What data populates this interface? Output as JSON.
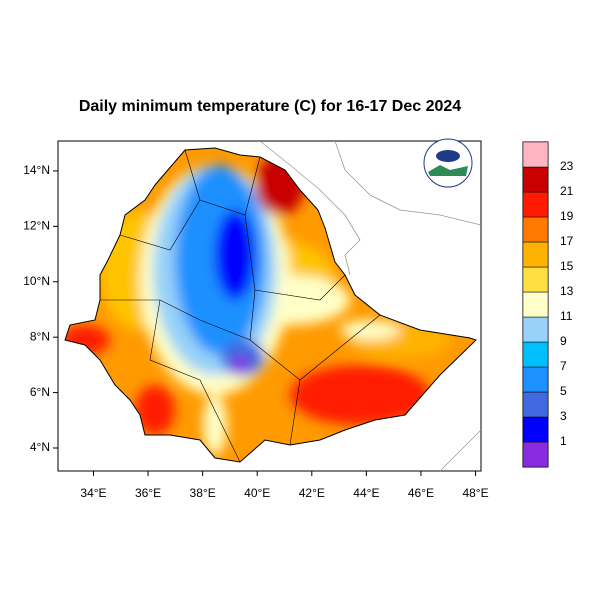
{
  "chart_data": {
    "type": "map",
    "title": "Daily minimum temperature (C) for 16-17 Dec 2024",
    "xlim": [
      32.7,
      48.2
    ],
    "ylim": [
      3.17,
      15.08
    ],
    "xticks": [
      {
        "value": 34,
        "label": "34°E"
      },
      {
        "value": 36,
        "label": "36°E"
      },
      {
        "value": 38,
        "label": "38°E"
      },
      {
        "value": 40,
        "label": "40°E"
      },
      {
        "value": 42,
        "label": "42°E"
      },
      {
        "value": 44,
        "label": "44°E"
      },
      {
        "value": 46,
        "label": "46°E"
      },
      {
        "value": 48,
        "label": "48°E"
      }
    ],
    "yticks": [
      {
        "value": 4,
        "label": "4°N"
      },
      {
        "value": 6,
        "label": "6°N"
      },
      {
        "value": 8,
        "label": "8°N"
      },
      {
        "value": 10,
        "label": "10°N"
      },
      {
        "value": 12,
        "label": "12°N"
      },
      {
        "value": 14,
        "label": "14°N"
      }
    ],
    "colorbar": {
      "levels": [
        1,
        3,
        5,
        7,
        9,
        11,
        13,
        15,
        17,
        19,
        21,
        23
      ],
      "colors": [
        "#8a2be2",
        "#0000ff",
        "#4169e1",
        "#1e90ff",
        "#00bfff",
        "#96d2fa",
        "#ffffc8",
        "#ffe040",
        "#ffb300",
        "#ff7800",
        "#ff1a00",
        "#c80000",
        "#ffb6c1"
      ]
    }
  }
}
